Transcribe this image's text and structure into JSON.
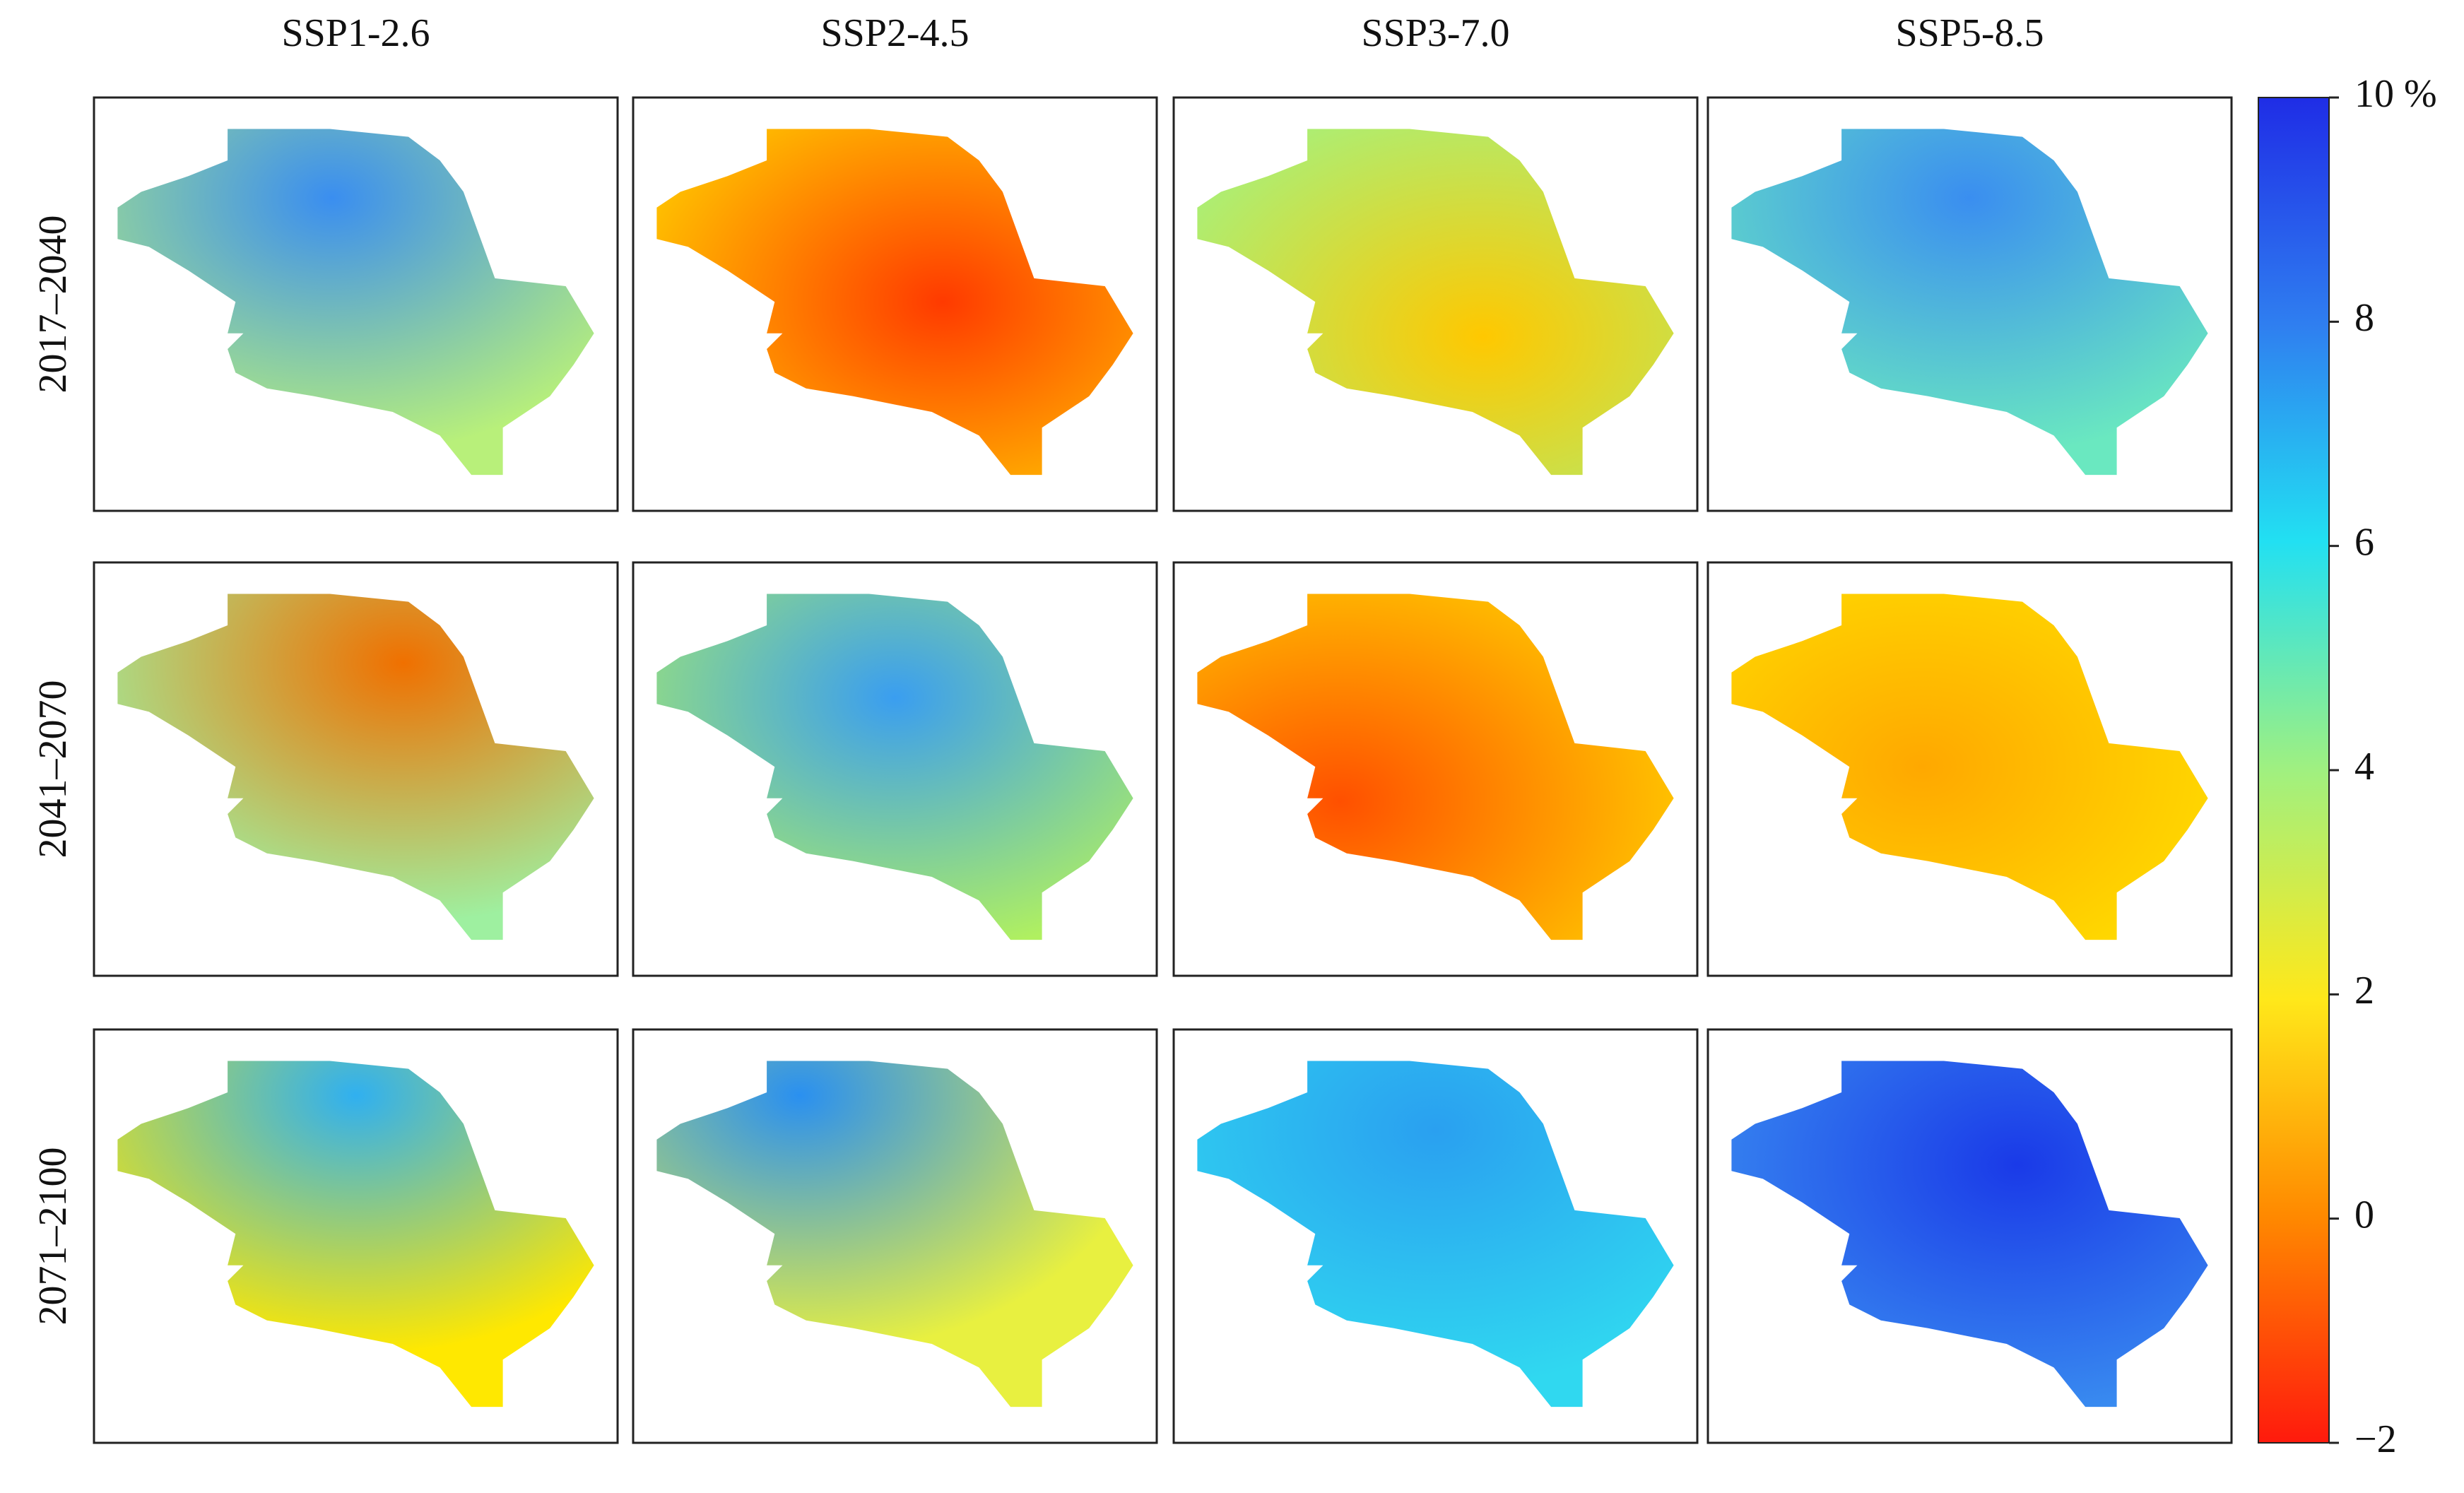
{
  "columns": [
    "SSP1-2.6",
    "SSP2-4.5",
    "SSP3-7.0",
    "SSP5-8.5"
  ],
  "rows": [
    "2017–2040",
    "2041–2070",
    "2071–2100"
  ],
  "colorbar": {
    "range": [
      -2,
      10
    ],
    "ticks": [
      {
        "value": -2,
        "label": "−2"
      },
      0,
      2,
      4,
      6,
      8,
      {
        "value": 10,
        "label": "10 %"
      }
    ]
  }
}
